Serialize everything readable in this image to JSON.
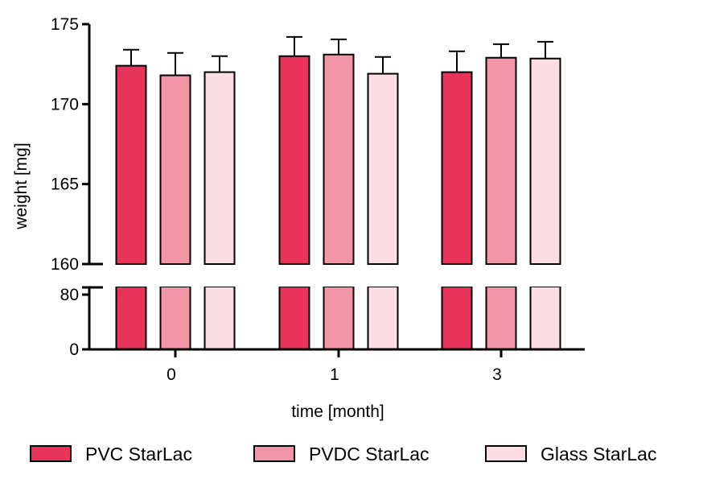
{
  "chart_data": {
    "type": "bar",
    "title": "",
    "xlabel": "time [month]",
    "ylabel": "weight [mg]",
    "categories": [
      "0",
      "1",
      "3"
    ],
    "series": [
      {
        "name": "PVC StarLac",
        "color": "#e8345a",
        "values": [
          172.4,
          173.0,
          172.0
        ],
        "errors": [
          1.0,
          1.2,
          1.3
        ]
      },
      {
        "name": "PVDC StarLac",
        "color": "#f295a7",
        "values": [
          171.8,
          173.1,
          172.9
        ],
        "errors": [
          1.4,
          0.95,
          0.85
        ]
      },
      {
        "name": "Glass StarLac",
        "color": "#fcdde3",
        "values": [
          172.0,
          171.9,
          172.85
        ],
        "errors": [
          1.0,
          1.05,
          1.05
        ]
      }
    ],
    "y_axis": {
      "broken": true,
      "upper_segment": {
        "range": [
          160,
          175
        ],
        "ticks": [
          "160",
          "165",
          "170",
          "175"
        ]
      },
      "lower_segment": {
        "range": [
          0,
          80
        ],
        "ticks": [
          "0",
          "80"
        ]
      }
    },
    "legend": {
      "position": "bottom"
    },
    "grid": false
  }
}
